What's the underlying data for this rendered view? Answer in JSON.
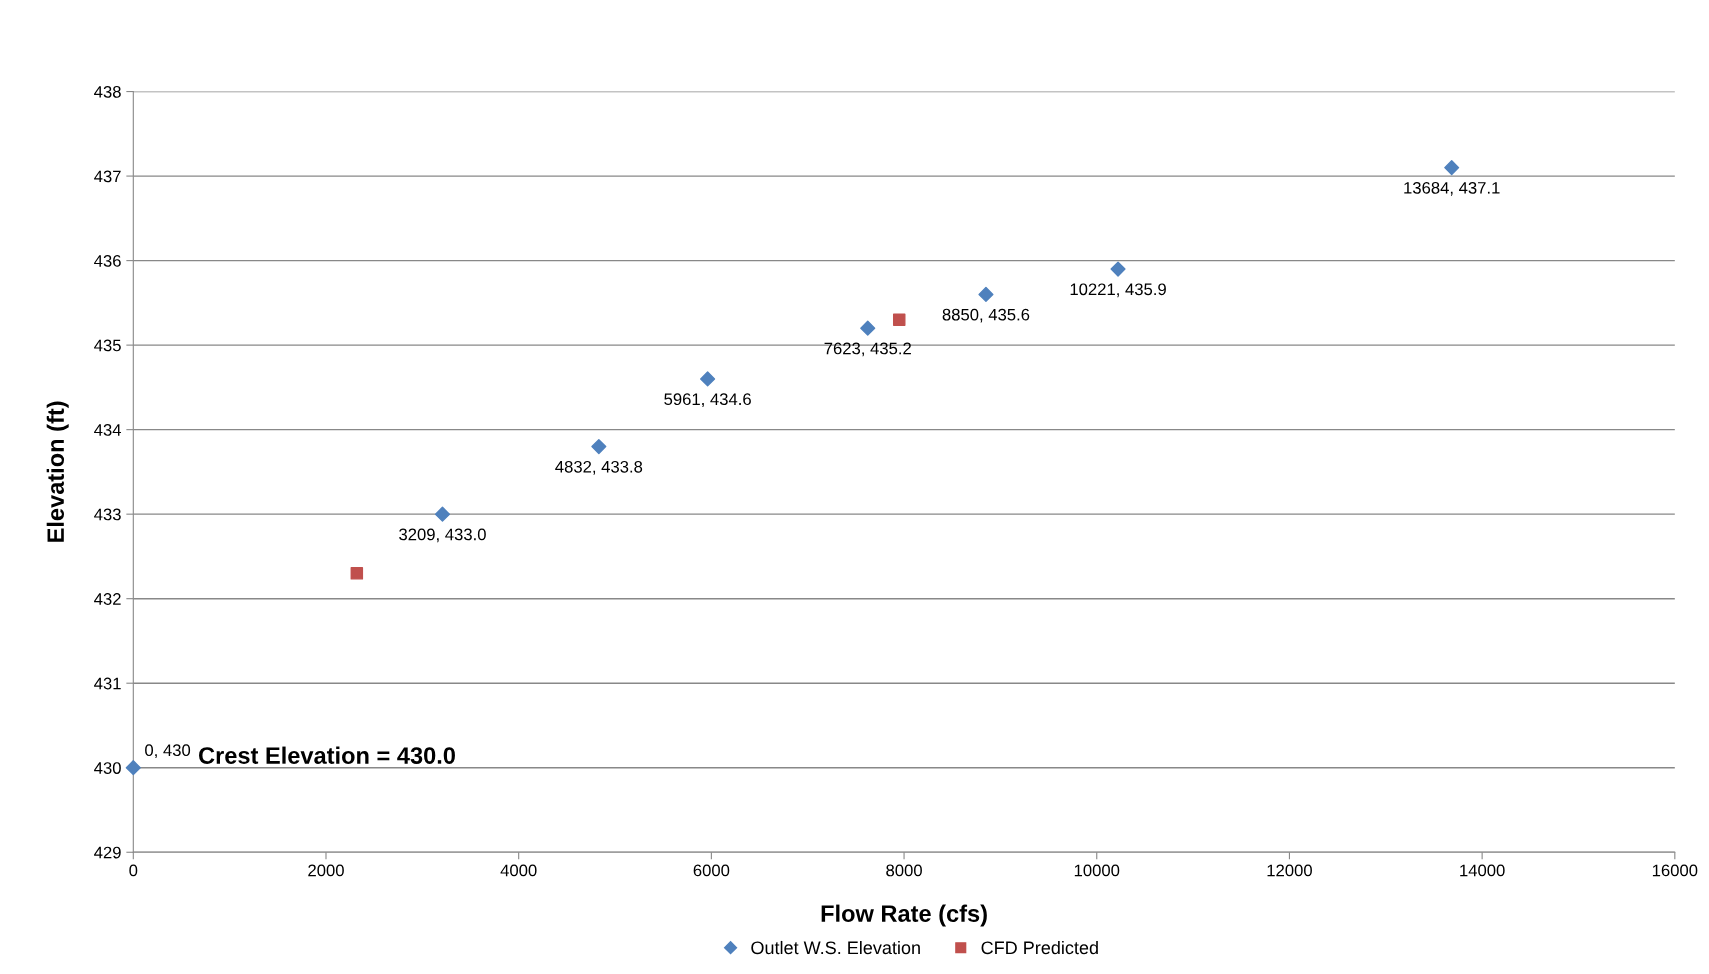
{
  "chart_data": {
    "type": "scatter",
    "xlabel": "Flow Rate (cfs)",
    "ylabel": "Elevation (ft)",
    "xlim": [
      0,
      16000
    ],
    "xticks": [
      0,
      2000,
      4000,
      6000,
      8000,
      10000,
      12000,
      14000,
      16000
    ],
    "ylim": [
      429,
      438
    ],
    "yticks": [
      429,
      430,
      431,
      432,
      433,
      434,
      435,
      436,
      437,
      438
    ],
    "grid": "y",
    "legend": "bottom",
    "series": [
      {
        "name": "Outlet W.S. Elevation",
        "color": "#4f81bd",
        "marker": "diamond",
        "x": [
          0,
          3209,
          4832,
          5961,
          7623,
          8850,
          10221,
          13684
        ],
        "values": [
          430,
          433.0,
          433.8,
          434.6,
          435.2,
          435.6,
          435.9,
          437.1
        ],
        "value_labels": [
          "0, 430",
          "3209, 433.0",
          "4832, 433.8",
          "5961, 434.6",
          "7623, 435.2",
          "8850, 435.6",
          "10221, 435.9",
          "13684, 437.1"
        ]
      },
      {
        "name": "CFD Predicted",
        "color": "#c0504d",
        "marker": "square",
        "x": [
          2320,
          7950
        ],
        "values": [
          432.3,
          435.3
        ]
      }
    ],
    "annotations": [
      "Crest Elevation = 430.0"
    ]
  }
}
